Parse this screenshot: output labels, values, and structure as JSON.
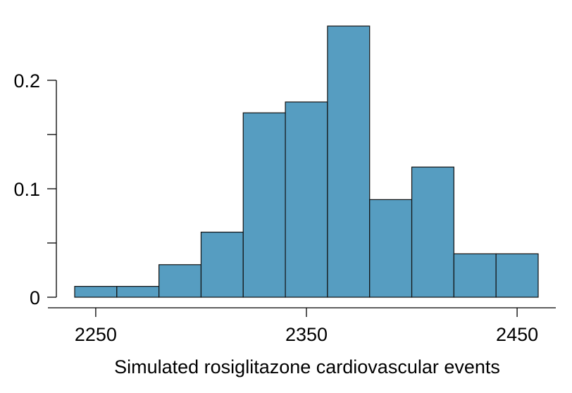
{
  "chart_data": {
    "type": "bar",
    "title": "",
    "xlabel": "Simulated rosiglitazone cardiovascular events",
    "ylabel": "",
    "bin_width": 20,
    "bins": [
      {
        "x0": 2240,
        "x1": 2260,
        "value": 0.01
      },
      {
        "x0": 2260,
        "x1": 2280,
        "value": 0.01
      },
      {
        "x0": 2280,
        "x1": 2300,
        "value": 0.03
      },
      {
        "x0": 2300,
        "x1": 2320,
        "value": 0.06
      },
      {
        "x0": 2320,
        "x1": 2340,
        "value": 0.17
      },
      {
        "x0": 2340,
        "x1": 2360,
        "value": 0.18
      },
      {
        "x0": 2360,
        "x1": 2380,
        "value": 0.25
      },
      {
        "x0": 2380,
        "x1": 2400,
        "value": 0.09
      },
      {
        "x0": 2400,
        "x1": 2420,
        "value": 0.12
      },
      {
        "x0": 2420,
        "x1": 2440,
        "value": 0.04
      },
      {
        "x0": 2440,
        "x1": 2460,
        "value": 0.04
      }
    ],
    "xticks": [
      2250,
      2350,
      2450
    ],
    "xtick_labels": [
      "2250",
      "2350",
      "2450"
    ],
    "yticks": [
      0,
      0.05,
      0.1,
      0.15,
      0.2
    ],
    "ytick_labels": [
      "0",
      "",
      "0.1",
      "",
      "0.2"
    ],
    "xlim": [
      2240,
      2460
    ],
    "ylim": [
      0,
      0.25
    ],
    "grid": false,
    "bar_color": "#569dc1"
  }
}
